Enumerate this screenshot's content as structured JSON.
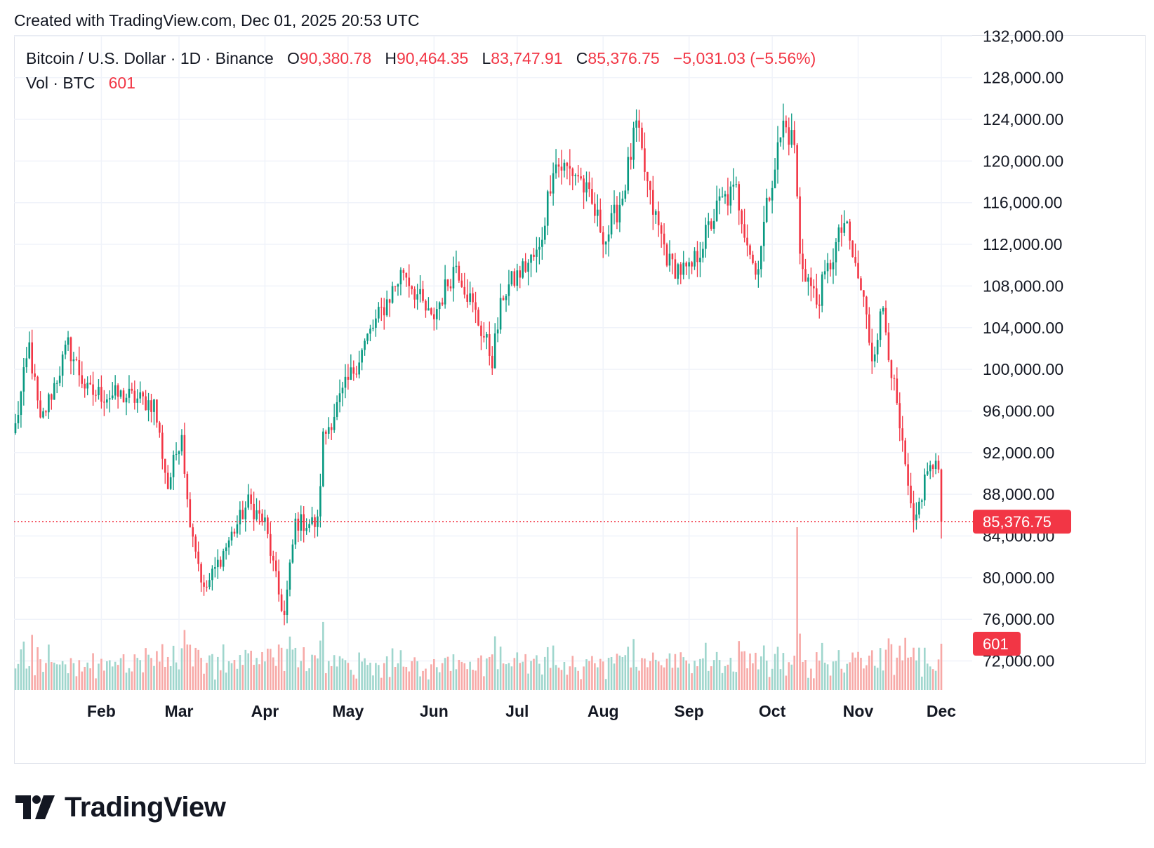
{
  "header": {
    "created_text": "Created with TradingView.com, Dec 01, 2025 20:53 UTC"
  },
  "legend": {
    "symbol": "Bitcoin / U.S. Dollar · 1D · Binance",
    "open_label": "O",
    "open": "90,380.78",
    "high_label": "H",
    "high": "90,464.35",
    "low_label": "L",
    "low": "83,747.91",
    "close_label": "C",
    "close": "85,376.75",
    "change": "−5,031.03 (−5.56%)",
    "vol_label": "Vol · BTC",
    "vol_value": "601"
  },
  "branding": {
    "logo_text": "TradingView",
    "logo_icon": "tradingview-logo-icon"
  },
  "colors": {
    "up": "#089981",
    "down": "#f23645",
    "vol_up": "#9fd6cd",
    "vol_down": "#f7a9a7",
    "grid": "#f0f3fa",
    "price_line": "#f23645"
  },
  "chart_data": {
    "type": "candlestick",
    "x_range": [
      "2025-01-01",
      "2025-12-01"
    ],
    "ylim": [
      69000,
      133000
    ],
    "price_axis_ticks": [
      "72,000.00",
      "76,000.00",
      "80,000.00",
      "84,000.00",
      "88,000.00",
      "92,000.00",
      "96,000.00",
      "100,000.00",
      "104,000.00",
      "108,000.00",
      "112,000.00",
      "116,000.00",
      "120,000.00",
      "124,000.00",
      "128,000.00",
      "132,000.00"
    ],
    "price_axis_values": [
      72000,
      76000,
      80000,
      84000,
      88000,
      92000,
      96000,
      100000,
      104000,
      108000,
      112000,
      116000,
      120000,
      124000,
      128000,
      132000
    ],
    "time_axis": [
      {
        "label": "Feb",
        "date": "2025-02-01"
      },
      {
        "label": "Mar",
        "date": "2025-03-01"
      },
      {
        "label": "Apr",
        "date": "2025-04-01"
      },
      {
        "label": "May",
        "date": "2025-05-01"
      },
      {
        "label": "Jun",
        "date": "2025-06-01"
      },
      {
        "label": "Jul",
        "date": "2025-07-01"
      },
      {
        "label": "Aug",
        "date": "2025-08-01"
      },
      {
        "label": "Sep",
        "date": "2025-09-01"
      },
      {
        "label": "Oct",
        "date": "2025-10-01"
      },
      {
        "label": "Nov",
        "date": "2025-11-01"
      },
      {
        "label": "Dec",
        "date": "2025-12-01"
      }
    ],
    "last_price": 85376.75,
    "last_price_label": "85,376.75",
    "last_volume_label": "601",
    "close_anchors": [
      [
        "2025-01-01",
        94500
      ],
      [
        "2025-01-06",
        102200
      ],
      [
        "2025-01-10",
        94700
      ],
      [
        "2025-01-20",
        102300
      ],
      [
        "2025-01-27",
        97800
      ],
      [
        "2025-02-03",
        97500
      ],
      [
        "2025-02-10",
        97400
      ],
      [
        "2025-02-20",
        96700
      ],
      [
        "2025-02-25",
        88700
      ],
      [
        "2025-03-02",
        94200
      ],
      [
        "2025-03-04",
        87200
      ],
      [
        "2025-03-10",
        78600
      ],
      [
        "2025-03-20",
        84100
      ],
      [
        "2025-03-26",
        87200
      ],
      [
        "2025-04-01",
        85200
      ],
      [
        "2025-04-06",
        78400
      ],
      [
        "2025-04-08",
        76300
      ],
      [
        "2025-04-12",
        85300
      ],
      [
        "2025-04-20",
        85200
      ],
      [
        "2025-04-22",
        93400
      ],
      [
        "2025-05-08",
        103000
      ],
      [
        "2025-05-21",
        109600
      ],
      [
        "2025-05-31",
        104600
      ],
      [
        "2025-06-09",
        110200
      ],
      [
        "2025-06-22",
        101000
      ],
      [
        "2025-06-26",
        107300
      ],
      [
        "2025-07-03",
        109600
      ],
      [
        "2025-07-09",
        111300
      ],
      [
        "2025-07-14",
        119800
      ],
      [
        "2025-07-23",
        118700
      ],
      [
        "2025-08-02",
        112500
      ],
      [
        "2025-08-08",
        116700
      ],
      [
        "2025-08-13",
        123300
      ],
      [
        "2025-08-18",
        116200
      ],
      [
        "2025-08-25",
        110100
      ],
      [
        "2025-09-01",
        109200
      ],
      [
        "2025-09-12",
        115900
      ],
      [
        "2025-09-18",
        117100
      ],
      [
        "2025-09-25",
        109100
      ],
      [
        "2025-10-01",
        118600
      ],
      [
        "2025-10-05",
        123500
      ],
      [
        "2025-10-09",
        121700
      ],
      [
        "2025-10-11",
        110800
      ],
      [
        "2025-10-17",
        106400
      ],
      [
        "2025-10-27",
        114100
      ],
      [
        "2025-11-03",
        106500
      ],
      [
        "2025-11-06",
        101300
      ],
      [
        "2025-11-10",
        105900
      ],
      [
        "2025-11-17",
        92200
      ],
      [
        "2025-11-21",
        84600
      ],
      [
        "2025-11-26",
        90500
      ],
      [
        "2025-11-30",
        90380
      ],
      [
        "2025-12-01",
        85377
      ]
    ]
  }
}
